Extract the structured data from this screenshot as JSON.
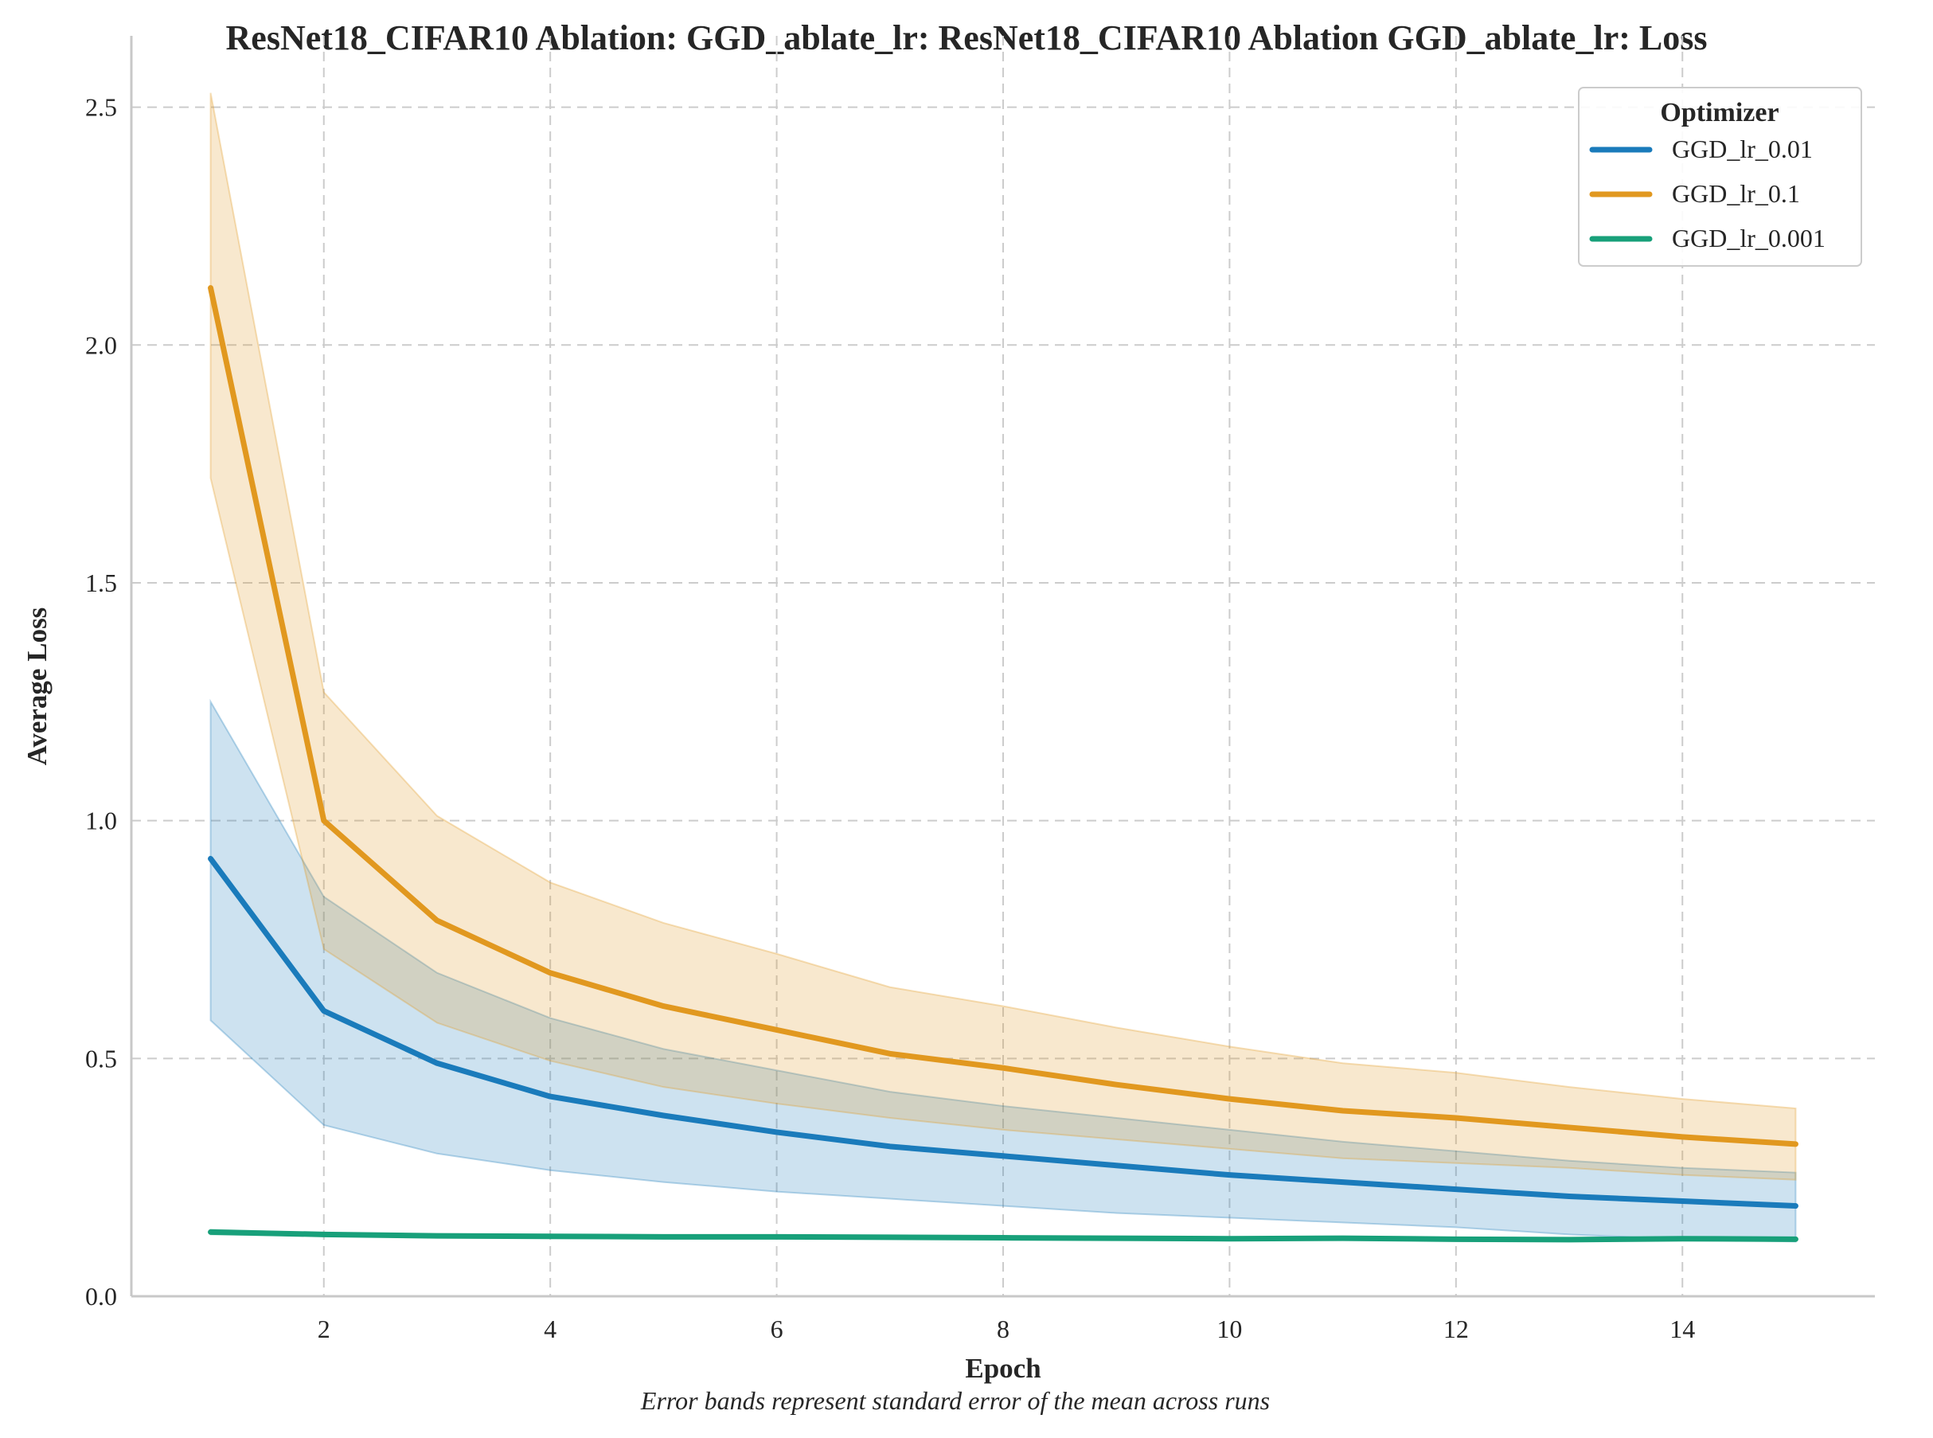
{
  "chart_data": {
    "type": "line",
    "title": "ResNet18_CIFAR10 Ablation: GGD_ablate_lr: ResNet18_CIFAR10 Ablation GGD_ablate_lr: Loss",
    "xlabel": "Epoch",
    "ylabel": "Average Loss",
    "note": "Error bands represent standard error of the mean across runs",
    "x": [
      1,
      2,
      3,
      4,
      5,
      6,
      7,
      8,
      9,
      10,
      11,
      12,
      13,
      14,
      15
    ],
    "xlim": [
      0.3,
      15.7
    ],
    "ylim": [
      0,
      2.65
    ],
    "xticks": [
      2,
      4,
      6,
      8,
      10,
      12,
      14
    ],
    "yticks": [
      0.0,
      0.5,
      1.0,
      1.5,
      2.0,
      2.5
    ],
    "grid": true,
    "legend": {
      "title": "Optimizer",
      "position": "top-right"
    },
    "series": [
      {
        "name": "GGD_lr_0.01",
        "color": "#1a7bbb",
        "values": [
          0.92,
          0.6,
          0.49,
          0.42,
          0.38,
          0.345,
          0.315,
          0.295,
          0.275,
          0.255,
          0.24,
          0.225,
          0.21,
          0.2,
          0.19
        ],
        "lower": [
          0.58,
          0.36,
          0.3,
          0.265,
          0.24,
          0.22,
          0.205,
          0.19,
          0.175,
          0.165,
          0.155,
          0.145,
          0.13,
          0.12,
          0.115
        ],
        "upper": [
          1.25,
          0.84,
          0.68,
          0.585,
          0.52,
          0.475,
          0.43,
          0.4,
          0.375,
          0.35,
          0.325,
          0.305,
          0.285,
          0.27,
          0.26
        ]
      },
      {
        "name": "GGD_lr_0.1",
        "color": "#e1981f",
        "values": [
          2.12,
          1.0,
          0.79,
          0.68,
          0.61,
          0.56,
          0.51,
          0.48,
          0.445,
          0.415,
          0.39,
          0.375,
          0.355,
          0.335,
          0.32
        ],
        "lower": [
          1.72,
          0.73,
          0.575,
          0.495,
          0.44,
          0.405,
          0.375,
          0.35,
          0.33,
          0.31,
          0.29,
          0.28,
          0.27,
          0.255,
          0.245
        ],
        "upper": [
          2.53,
          1.27,
          1.01,
          0.87,
          0.785,
          0.72,
          0.65,
          0.61,
          0.565,
          0.525,
          0.49,
          0.47,
          0.44,
          0.415,
          0.395
        ]
      },
      {
        "name": "GGD_lr_0.001",
        "color": "#18a07a",
        "values": [
          0.135,
          0.13,
          0.127,
          0.126,
          0.125,
          0.125,
          0.124,
          0.123,
          0.122,
          0.121,
          0.122,
          0.12,
          0.119,
          0.121,
          0.12
        ],
        "lower": [
          0.13,
          0.127,
          0.124,
          0.123,
          0.122,
          0.122,
          0.121,
          0.12,
          0.119,
          0.118,
          0.119,
          0.117,
          0.116,
          0.118,
          0.117
        ],
        "upper": [
          0.14,
          0.133,
          0.13,
          0.129,
          0.128,
          0.128,
          0.127,
          0.126,
          0.125,
          0.124,
          0.125,
          0.123,
          0.122,
          0.124,
          0.123
        ]
      }
    ]
  }
}
